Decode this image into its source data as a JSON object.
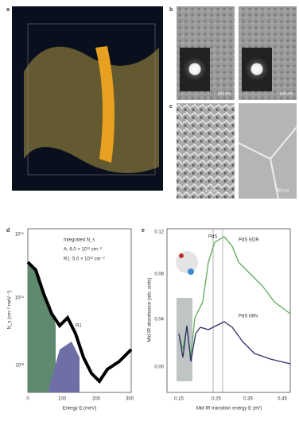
{
  "panels": {
    "a": {
      "label": "a"
    },
    "b": {
      "label": "b",
      "scale_bars": [
        "500 nm",
        "500 nm"
      ]
    },
    "c": {
      "label": "c",
      "scale_bars": [
        "200 nm",
        "200 nm"
      ]
    },
    "d": {
      "label": "d",
      "y_label": "N_s (cm⁻² meV⁻¹)",
      "y_ticks": [
        "10¹⁵",
        "10¹⁴",
        "10¹³"
      ],
      "x_label": "Energy E (meV)",
      "x_ticks": [
        "0",
        "100",
        "200",
        "300"
      ],
      "legend": [
        "Integrated N_s",
        "A: 6.0 × 10¹² cm⁻²",
        "R1: 5.0 × 10¹² cm⁻²"
      ],
      "region_labels": [
        "A",
        "R1"
      ]
    },
    "e": {
      "label": "e",
      "y_label": "Mid-IR absorbance (arb. units)",
      "y_ticks": [
        "0.12",
        "0.08",
        "0.04",
        "0.00"
      ],
      "x_label": "Mid-IR transition energy E (eV)",
      "x_ticks": [
        "0.15",
        "0.25",
        "0.35",
        "0.45"
      ],
      "curve_labels": [
        "PdS",
        "PdS EDR",
        "PdS MIN"
      ]
    }
  }
}
